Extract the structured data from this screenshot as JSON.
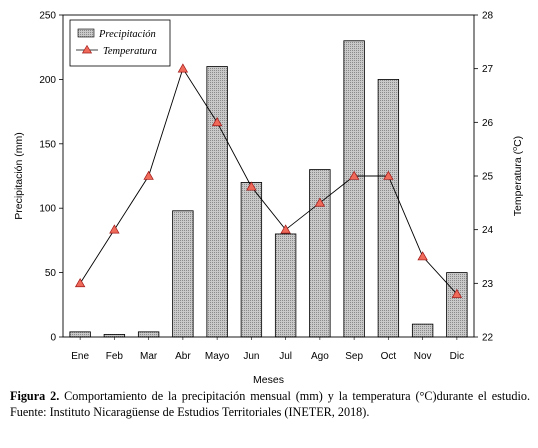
{
  "chart_data": {
    "type": "bar+line",
    "categories": [
      "Ene",
      "Feb",
      "Mar",
      "Abr",
      "Mayo",
      "Jun",
      "Jul",
      "Ago",
      "Sep",
      "Oct",
      "Nov",
      "Dic"
    ],
    "series": [
      {
        "name": "Precipitación",
        "type": "bar",
        "axis": "left",
        "values": [
          4,
          2,
          4,
          98,
          210,
          120,
          80,
          130,
          230,
          200,
          10,
          50
        ]
      },
      {
        "name": "Temperatura",
        "type": "line",
        "axis": "right",
        "values": [
          23,
          24,
          25,
          27,
          26,
          24.8,
          24,
          24.5,
          25,
          25,
          23.5,
          22.8
        ]
      }
    ],
    "xlabel": "Meses",
    "ylabel_left": "Precipitación (mm)",
    "ylabel_right_main": "Temperatura (",
    "ylabel_right_sup": "o",
    "ylabel_right_tail": "C)",
    "ylim_left": [
      0,
      250
    ],
    "yticks_left": [
      "0",
      "50",
      "100",
      "150",
      "200",
      "250"
    ],
    "ylim_right": [
      22,
      28
    ],
    "yticks_right": [
      "22",
      "23",
      "24",
      "25",
      "26",
      "27",
      "28"
    ],
    "legend_position": "top-left",
    "grid": false,
    "colors": {
      "bar_fill": "#bdbdbd",
      "bar_stroke": "#000000",
      "line": "#000000",
      "marker_fill": "#f06a5a",
      "marker_stroke": "#a01818"
    }
  },
  "caption": {
    "label": "Figura 2.",
    "text": " Comportamiento de la precipitación mensual (mm) y la temperatura (°C)durante el estudio. Fuente: Instituto Nicaragüense de Estudios Territoriales (INETER, 2018)."
  }
}
